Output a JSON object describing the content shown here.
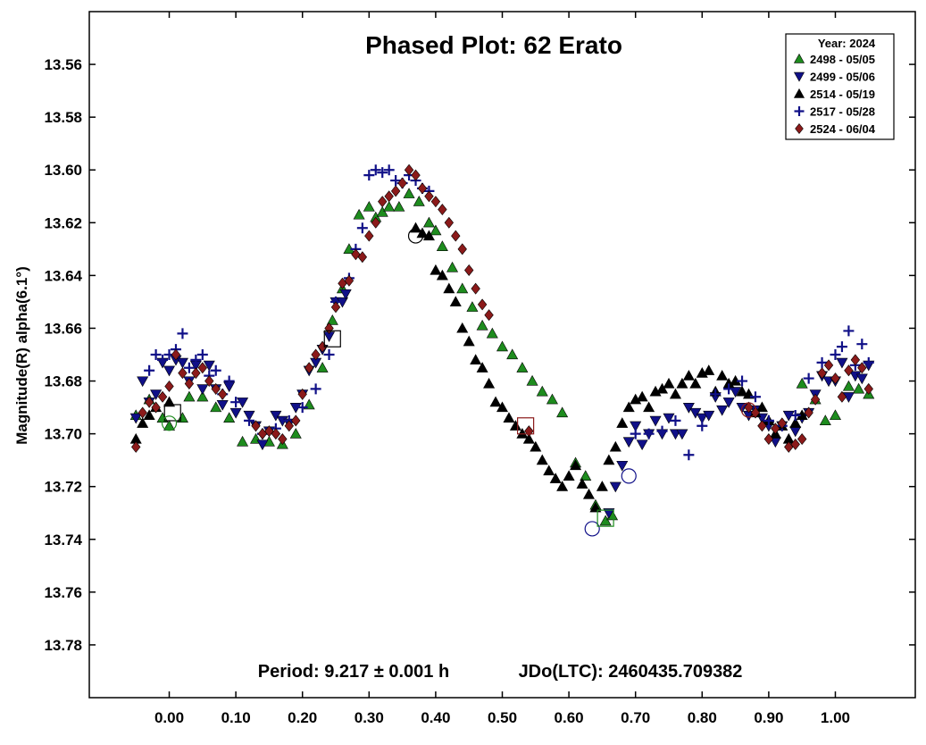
{
  "chart_data": {
    "type": "scatter",
    "title": "Phased Plot: 62 Erato",
    "ylabel": "Magnitude(R) alpha(6.1°)",
    "xlabel": "",
    "xlim": [
      -0.12,
      1.12
    ],
    "ylim": [
      13.8,
      13.54
    ],
    "y_inverted": true,
    "x_ticks": [
      "0.00",
      "0.10",
      "0.20",
      "0.30",
      "0.40",
      "0.50",
      "0.60",
      "0.70",
      "0.80",
      "0.90",
      "1.00"
    ],
    "x_tick_values": [
      0,
      0.1,
      0.2,
      0.3,
      0.4,
      0.5,
      0.6,
      0.7,
      0.8,
      0.9,
      1.0
    ],
    "y_ticks": [
      "13.56",
      "13.58",
      "13.60",
      "13.62",
      "13.64",
      "13.66",
      "13.68",
      "13.70",
      "13.72",
      "13.74",
      "13.76",
      "13.78"
    ],
    "y_tick_values": [
      13.56,
      13.58,
      13.6,
      13.62,
      13.64,
      13.66,
      13.68,
      13.7,
      13.72,
      13.74,
      13.76,
      13.78
    ],
    "grid": false,
    "legend_position": "top-right",
    "legend_title": "Year: 2024",
    "period_text": "Period: 9.217 ± 0.001 h",
    "epoch_text": "JDo(LTC): 2460435.709382",
    "series": [
      {
        "name": "2498 - 05/05",
        "marker": "triangle-up",
        "color": "#1e8c1e",
        "x": [
          -0.05,
          -0.03,
          -0.01,
          0.0,
          0.02,
          0.03,
          0.05,
          0.07,
          0.09,
          0.11,
          0.13,
          0.15,
          0.17,
          0.19,
          0.21,
          0.23,
          0.245,
          0.26,
          0.27,
          0.285,
          0.3,
          0.31,
          0.32,
          0.33,
          0.345,
          0.36,
          0.375,
          0.39,
          0.4,
          0.41,
          0.425,
          0.44,
          0.455,
          0.47,
          0.485,
          0.5,
          0.515,
          0.53,
          0.545,
          0.56,
          0.575,
          0.59,
          0.61,
          0.625,
          0.64,
          0.655,
          0.665,
          0.95,
          0.97,
          0.985,
          1.0,
          1.02,
          1.035,
          1.05
        ],
        "y": [
          13.693,
          13.687,
          13.694,
          13.697,
          13.694,
          13.686,
          13.686,
          13.69,
          13.694,
          13.703,
          13.702,
          13.703,
          13.704,
          13.7,
          13.689,
          13.675,
          13.657,
          13.645,
          13.63,
          13.617,
          13.614,
          13.618,
          13.616,
          13.614,
          13.614,
          13.609,
          13.612,
          13.62,
          13.623,
          13.629,
          13.637,
          13.645,
          13.652,
          13.659,
          13.662,
          13.667,
          13.67,
          13.675,
          13.68,
          13.684,
          13.687,
          13.692,
          13.711,
          13.716,
          13.727,
          13.733,
          13.731,
          13.681,
          13.687,
          13.695,
          13.693,
          13.682,
          13.683,
          13.685
        ]
      },
      {
        "name": "2499 - 05/06",
        "marker": "triangle-down",
        "color": "#101088",
        "x": [
          -0.05,
          -0.04,
          -0.03,
          -0.02,
          -0.01,
          0.0,
          0.01,
          0.02,
          0.03,
          0.04,
          0.05,
          0.06,
          0.07,
          0.08,
          0.09,
          0.1,
          0.11,
          0.12,
          0.13,
          0.14,
          0.15,
          0.16,
          0.17,
          0.18,
          0.19,
          0.2,
          0.21,
          0.22,
          0.23,
          0.24,
          0.25,
          0.26,
          0.265,
          0.66,
          0.67,
          0.68,
          0.69,
          0.7,
          0.71,
          0.72,
          0.73,
          0.74,
          0.75,
          0.76,
          0.77,
          0.78,
          0.79,
          0.8,
          0.81,
          0.82,
          0.83,
          0.84,
          0.85,
          0.86,
          0.87,
          0.88,
          0.89,
          0.9,
          0.91,
          0.92,
          0.93,
          0.94,
          0.95,
          0.96,
          0.97,
          0.98,
          0.99,
          1.0,
          1.01,
          1.02,
          1.03,
          1.04,
          1.05
        ],
        "y": [
          13.694,
          13.68,
          13.688,
          13.685,
          13.673,
          13.676,
          13.672,
          13.673,
          13.68,
          13.674,
          13.683,
          13.674,
          13.683,
          13.689,
          13.682,
          13.692,
          13.688,
          13.693,
          13.697,
          13.704,
          13.699,
          13.693,
          13.695,
          13.696,
          13.69,
          13.685,
          13.676,
          13.673,
          13.668,
          13.663,
          13.65,
          13.65,
          13.647,
          13.73,
          13.72,
          13.712,
          13.703,
          13.697,
          13.704,
          13.7,
          13.695,
          13.7,
          13.694,
          13.7,
          13.7,
          13.69,
          13.692,
          13.694,
          13.693,
          13.686,
          13.691,
          13.688,
          13.684,
          13.69,
          13.693,
          13.691,
          13.694,
          13.697,
          13.703,
          13.697,
          13.693,
          13.699,
          13.694,
          13.692,
          13.685,
          13.678,
          13.68,
          13.68,
          13.673,
          13.686,
          13.678,
          13.679,
          13.674
        ]
      },
      {
        "name": "2514 - 05/19",
        "marker": "triangle-up",
        "color": "#000000",
        "x": [
          -0.05,
          -0.04,
          -0.03,
          -0.02,
          0.0,
          0.37,
          0.38,
          0.39,
          0.4,
          0.41,
          0.42,
          0.43,
          0.44,
          0.45,
          0.46,
          0.47,
          0.48,
          0.49,
          0.5,
          0.51,
          0.52,
          0.53,
          0.54,
          0.55,
          0.56,
          0.57,
          0.58,
          0.59,
          0.6,
          0.61,
          0.62,
          0.63,
          0.64,
          0.65,
          0.66,
          0.67,
          0.68,
          0.69,
          0.7,
          0.71,
          0.72,
          0.73,
          0.74,
          0.75,
          0.76,
          0.77,
          0.78,
          0.79,
          0.8,
          0.81,
          0.82,
          0.83,
          0.84,
          0.85,
          0.86,
          0.87,
          0.88,
          0.89,
          0.9,
          0.91,
          0.92,
          0.93,
          0.94,
          0.95
        ],
        "y": [
          13.702,
          13.696,
          13.693,
          13.69,
          13.688,
          13.622,
          13.624,
          13.625,
          13.638,
          13.64,
          13.645,
          13.65,
          13.66,
          13.665,
          13.672,
          13.675,
          13.681,
          13.688,
          13.69,
          13.694,
          13.697,
          13.7,
          13.702,
          13.705,
          13.71,
          13.714,
          13.717,
          13.72,
          13.716,
          13.712,
          13.719,
          13.723,
          13.728,
          13.72,
          13.71,
          13.705,
          13.696,
          13.69,
          13.687,
          13.686,
          13.69,
          13.684,
          13.683,
          13.681,
          13.685,
          13.681,
          13.678,
          13.681,
          13.677,
          13.676,
          13.684,
          13.678,
          13.681,
          13.68,
          13.684,
          13.685,
          13.692,
          13.69,
          13.695,
          13.7,
          13.697,
          13.702,
          13.696,
          13.693
        ]
      },
      {
        "name": "2517 - 05/28",
        "marker": "plus",
        "color": "#101088",
        "x": [
          -0.03,
          -0.02,
          -0.01,
          0.0,
          0.01,
          0.02,
          0.03,
          0.04,
          0.05,
          0.06,
          0.07,
          0.08,
          0.09,
          0.1,
          0.12,
          0.14,
          0.16,
          0.18,
          0.2,
          0.22,
          0.24,
          0.25,
          0.27,
          0.28,
          0.29,
          0.3,
          0.31,
          0.32,
          0.33,
          0.34,
          0.35,
          0.36,
          0.37,
          0.38,
          0.39,
          0.7,
          0.72,
          0.74,
          0.76,
          0.78,
          0.8,
          0.82,
          0.84,
          0.86,
          0.88,
          0.9,
          0.92,
          0.94,
          0.96,
          0.98,
          1.0,
          1.01,
          1.02,
          1.03,
          1.04,
          1.05
        ],
        "y": [
          13.676,
          13.67,
          13.672,
          13.67,
          13.668,
          13.662,
          13.675,
          13.672,
          13.67,
          13.678,
          13.676,
          13.685,
          13.68,
          13.688,
          13.695,
          13.7,
          13.698,
          13.695,
          13.69,
          13.683,
          13.67,
          13.65,
          13.641,
          13.63,
          13.622,
          13.602,
          13.6,
          13.601,
          13.6,
          13.604,
          13.605,
          13.602,
          13.604,
          13.607,
          13.608,
          13.7,
          13.7,
          13.699,
          13.695,
          13.708,
          13.697,
          13.685,
          13.683,
          13.68,
          13.686,
          13.695,
          13.697,
          13.693,
          13.679,
          13.673,
          13.67,
          13.667,
          13.661,
          13.674,
          13.666,
          13.673
        ]
      },
      {
        "name": "2524 - 06/04",
        "marker": "diamond",
        "color": "#8b1a1a",
        "x": [
          -0.05,
          -0.04,
          -0.03,
          -0.02,
          -0.01,
          0.0,
          0.01,
          0.02,
          0.03,
          0.04,
          0.05,
          0.06,
          0.07,
          0.08,
          0.13,
          0.14,
          0.15,
          0.16,
          0.17,
          0.18,
          0.19,
          0.2,
          0.21,
          0.22,
          0.23,
          0.24,
          0.25,
          0.26,
          0.27,
          0.28,
          0.29,
          0.3,
          0.31,
          0.32,
          0.33,
          0.34,
          0.35,
          0.36,
          0.37,
          0.38,
          0.39,
          0.4,
          0.41,
          0.42,
          0.43,
          0.44,
          0.45,
          0.46,
          0.47,
          0.48,
          0.54,
          0.87,
          0.88,
          0.89,
          0.9,
          0.91,
          0.92,
          0.93,
          0.94,
          0.95,
          0.96,
          0.97,
          0.98,
          0.99,
          1.0,
          1.01,
          1.02,
          1.03,
          1.04,
          1.05
        ],
        "y": [
          13.705,
          13.692,
          13.688,
          13.69,
          13.686,
          13.682,
          13.67,
          13.677,
          13.681,
          13.677,
          13.675,
          13.68,
          13.683,
          13.685,
          13.697,
          13.7,
          13.699,
          13.7,
          13.702,
          13.697,
          13.695,
          13.685,
          13.675,
          13.67,
          13.667,
          13.66,
          13.652,
          13.643,
          13.642,
          13.632,
          13.633,
          13.625,
          13.62,
          13.612,
          13.61,
          13.608,
          13.605,
          13.6,
          13.602,
          13.607,
          13.61,
          13.612,
          13.615,
          13.62,
          13.625,
          13.63,
          13.638,
          13.645,
          13.651,
          13.655,
          13.699,
          13.69,
          13.692,
          13.697,
          13.702,
          13.698,
          13.696,
          13.705,
          13.704,
          13.702,
          13.692,
          13.687,
          13.677,
          13.674,
          13.679,
          13.686,
          13.676,
          13.672,
          13.675,
          13.683
        ]
      }
    ],
    "reference_markers": [
      {
        "shape": "square",
        "color": "#000000",
        "x": 0.005,
        "y": 13.692
      },
      {
        "shape": "circle",
        "color": "#1e8c1e",
        "x": 0.0,
        "y": 13.696
      },
      {
        "shape": "square",
        "color": "#000000",
        "x": 0.245,
        "y": 13.664
      },
      {
        "shape": "circle",
        "color": "#000000",
        "x": 0.37,
        "y": 13.625
      },
      {
        "shape": "square",
        "color": "#8b1a1a",
        "x": 0.535,
        "y": 13.697
      },
      {
        "shape": "circle",
        "color": "#101088",
        "x": 0.635,
        "y": 13.736
      },
      {
        "shape": "square",
        "color": "#1e8c1e",
        "x": 0.655,
        "y": 13.732
      },
      {
        "shape": "circle",
        "color": "#101088",
        "x": 0.69,
        "y": 13.716
      },
      {
        "shape": "circle",
        "color": "#8b1a1a",
        "x": 0.87,
        "y": 13.691
      }
    ]
  }
}
